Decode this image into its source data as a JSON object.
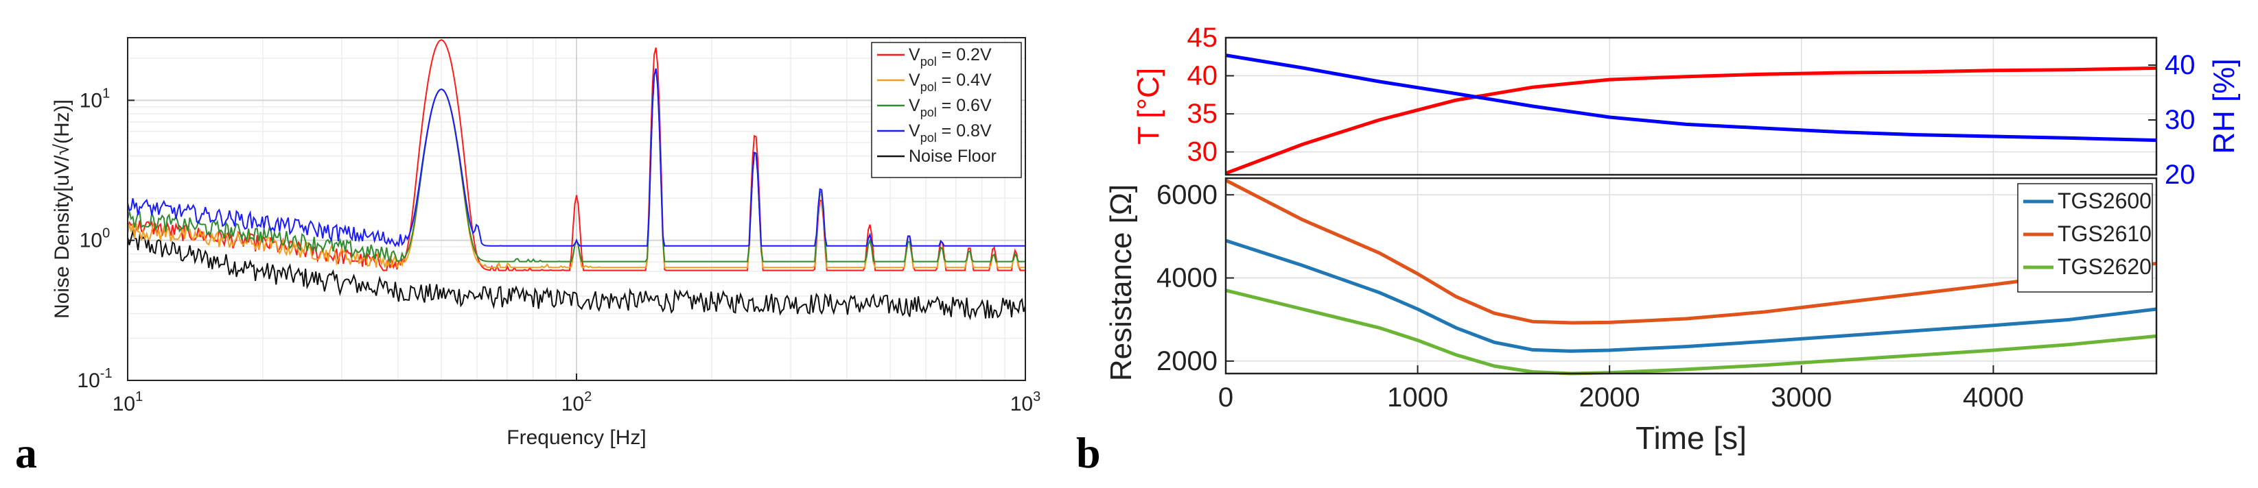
{
  "figure": {
    "panel_a_label": "a",
    "panel_b_label": "b"
  },
  "chart_data": [
    {
      "type": "line",
      "panel": "a",
      "title": "",
      "xlabel": "Frequency [Hz]",
      "ylabel": "Noise Density[uV/√(Hz)]",
      "xscale": "log",
      "yscale": "log",
      "xlim": [
        10,
        1000
      ],
      "ylim": [
        0.1,
        28
      ],
      "xticks": [
        10,
        100,
        1000
      ],
      "xtick_labels": [
        "10",
        "10",
        "10"
      ],
      "xtick_exponents": [
        "1",
        "2",
        "3"
      ],
      "yticks": [
        0.1,
        1,
        10
      ],
      "ytick_labels": [
        "10",
        "10",
        "10"
      ],
      "ytick_exponents": [
        "-1",
        "0",
        "1"
      ],
      "grid": true,
      "legend_position": "top-right",
      "legend_vpol": {
        "main": "V",
        "sub": "pol",
        "values": [
          " = 0.2V",
          " = 0.4V",
          " = 0.6V",
          " = 0.8V"
        ]
      },
      "legend_noise_floor": "Noise Floor",
      "series": [
        {
          "name_value": " = 0.2V",
          "color": "#ff1a1a",
          "base": [
            [
              10,
              1.3
            ],
            [
              20,
              0.95
            ],
            [
              45,
              0.62
            ],
            [
              100,
              0.55
            ],
            [
              300,
              0.5
            ],
            [
              1000,
              0.45
            ]
          ],
          "peaks": [
            [
              50,
              27
            ],
            [
              100,
              2.1
            ],
            [
              150,
              24
            ],
            [
              250,
              5.8
            ],
            [
              350,
              2.0
            ],
            [
              450,
              1.3
            ],
            [
              550,
              1.1
            ],
            [
              650,
              1.0
            ],
            [
              750,
              0.9
            ],
            [
              850,
              0.9
            ],
            [
              950,
              0.85
            ]
          ]
        },
        {
          "name_value": " = 0.4V",
          "color": "#f0a020",
          "base": [
            [
              10,
              1.2
            ],
            [
              20,
              0.95
            ],
            [
              45,
              0.65
            ],
            [
              100,
              0.58
            ],
            [
              300,
              0.52
            ],
            [
              1000,
              0.47
            ]
          ],
          "peaks": [
            [
              50,
              12
            ],
            [
              100,
              1.0
            ],
            [
              150,
              17
            ],
            [
              250,
              4.4
            ],
            [
              350,
              2.2
            ],
            [
              450,
              1.0
            ],
            [
              550,
              1.0
            ],
            [
              650,
              0.9
            ],
            [
              750,
              0.85
            ],
            [
              850,
              0.8
            ],
            [
              950,
              0.8
            ]
          ]
        },
        {
          "name_value": " = 0.6V",
          "color": "#2e8b2e",
          "base": [
            [
              10,
              1.45
            ],
            [
              20,
              1.1
            ],
            [
              45,
              0.72
            ],
            [
              100,
              0.62
            ],
            [
              300,
              0.55
            ],
            [
              1000,
              0.5
            ]
          ],
          "peaks": [
            [
              50,
              12
            ],
            [
              100,
              1.0
            ],
            [
              150,
              17
            ],
            [
              250,
              4.4
            ],
            [
              350,
              2.3
            ],
            [
              450,
              1.0
            ],
            [
              550,
              1.0
            ],
            [
              650,
              0.9
            ],
            [
              750,
              0.85
            ],
            [
              850,
              0.8
            ],
            [
              950,
              0.8
            ]
          ]
        },
        {
          "name_value": " = 0.8V",
          "color": "#1a1aff",
          "base": [
            [
              10,
              1.8
            ],
            [
              20,
              1.35
            ],
            [
              45,
              0.95
            ],
            [
              100,
              0.7
            ],
            [
              300,
              0.58
            ],
            [
              1000,
              0.52
            ]
          ],
          "peaks": [
            [
              50,
              12
            ],
            [
              60,
              1.3
            ],
            [
              100,
              1.0
            ],
            [
              150,
              17
            ],
            [
              250,
              4.4
            ],
            [
              350,
              2.4
            ],
            [
              450,
              1.1
            ],
            [
              550,
              1.1
            ],
            [
              650,
              1.0
            ],
            [
              750,
              0.9
            ],
            [
              850,
              0.85
            ],
            [
              950,
              0.85
            ]
          ]
        }
      ],
      "noise_floor": {
        "name": "Noise Floor",
        "color": "#111111",
        "base": [
          [
            10,
            1.0
          ],
          [
            20,
            0.6
          ],
          [
            45,
            0.42
          ],
          [
            100,
            0.38
          ],
          [
            300,
            0.36
          ],
          [
            1000,
            0.33
          ]
        ]
      }
    },
    {
      "type": "line",
      "panel": "b-top",
      "title": "",
      "xlim": [
        0,
        4850
      ],
      "left_axis": {
        "label": "T [°C]",
        "color": "#ff0000",
        "ylim": [
          27,
          45
        ],
        "ticks": [
          30,
          35,
          40,
          45
        ]
      },
      "right_axis": {
        "label": "RH [%]",
        "color": "#0000ff",
        "ylim": [
          20,
          45
        ],
        "ticks": [
          20,
          30,
          40
        ]
      },
      "grid": true,
      "series": [
        {
          "name": "T [°C]",
          "axis": "left",
          "color": "#ff0000",
          "x": [
            0,
            400,
            800,
            1200,
            1600,
            2000,
            2400,
            2800,
            3200,
            3600,
            4000,
            4400,
            4850
          ],
          "y": [
            27.2,
            31.0,
            34.2,
            36.8,
            38.5,
            39.5,
            39.9,
            40.2,
            40.4,
            40.5,
            40.7,
            40.8,
            41.0
          ]
        },
        {
          "name": "RH [%]",
          "axis": "right",
          "color": "#0000ff",
          "x": [
            0,
            400,
            800,
            1200,
            1600,
            2000,
            2400,
            2800,
            3200,
            3600,
            4000,
            4400,
            4850
          ],
          "y": [
            41.8,
            39.5,
            37.0,
            34.8,
            32.5,
            30.5,
            29.2,
            28.5,
            27.8,
            27.3,
            27.0,
            26.7,
            26.3
          ]
        }
      ]
    },
    {
      "type": "line",
      "panel": "b-bottom",
      "title": "",
      "xlabel": "Time [s]",
      "ylabel": "Resistance [Ω]",
      "xlim": [
        0,
        4850
      ],
      "ylim": [
        1700,
        6400
      ],
      "xticks": [
        0,
        1000,
        2000,
        3000,
        4000
      ],
      "yticks": [
        2000,
        4000,
        6000
      ],
      "grid": true,
      "legend_position": "top-right",
      "series": [
        {
          "name": "TGS2600",
          "color": "#1f77b4",
          "x": [
            0,
            400,
            800,
            1000,
            1200,
            1400,
            1600,
            1800,
            2000,
            2400,
            2800,
            3200,
            3600,
            4000,
            4400,
            4850
          ],
          "y": [
            4900,
            4300,
            3650,
            3250,
            2800,
            2450,
            2270,
            2240,
            2260,
            2350,
            2470,
            2600,
            2730,
            2860,
            3000,
            3250
          ]
        },
        {
          "name": "TGS2610",
          "color": "#e0531a",
          "x": [
            0,
            400,
            800,
            1000,
            1200,
            1400,
            1600,
            1800,
            2000,
            2400,
            2800,
            3200,
            3600,
            4000,
            4400,
            4850
          ],
          "y": [
            6350,
            5400,
            4600,
            4100,
            3550,
            3150,
            2950,
            2920,
            2930,
            3020,
            3180,
            3400,
            3620,
            3840,
            4080,
            4350
          ]
        },
        {
          "name": "TGS2620",
          "color": "#6bb536",
          "x": [
            0,
            400,
            800,
            1000,
            1200,
            1400,
            1600,
            1800,
            2000,
            2400,
            2800,
            3200,
            3600,
            4000,
            4400,
            4850
          ],
          "y": [
            3700,
            3250,
            2800,
            2500,
            2150,
            1880,
            1740,
            1700,
            1720,
            1800,
            1900,
            2020,
            2140,
            2260,
            2400,
            2600
          ]
        }
      ]
    }
  ]
}
